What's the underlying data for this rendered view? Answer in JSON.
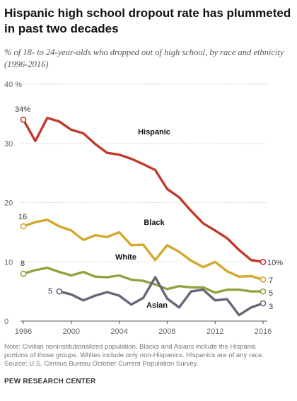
{
  "header": {
    "title": "Hispanic high school dropout rate has plummeted in past two decades",
    "subtitle": "% of 18- to 24-year-olds who dropped out of high school, by race and ethnicity (1996-2016)"
  },
  "footer": {
    "note_line1": "Note: Civilian noninstitutionalized population. Blacks and Asians include the Hispanic",
    "note_line2": "portions of those groups. Whites include only non-Hispanics. Hispanics are of any race.",
    "note_line3": "Source: U.S. Census Bureau October Current Population Survey.",
    "source": "PEW RESEARCH CENTER"
  },
  "chart_data": {
    "type": "line",
    "xlim": [
      1996,
      2016
    ],
    "ylim": [
      0,
      40
    ],
    "x_ticks": [
      "1996",
      "2000",
      "2004",
      "2008",
      "2012",
      "2016"
    ],
    "x_tick_values": [
      1996,
      2000,
      2004,
      2008,
      2012,
      2016
    ],
    "y_ticks": [
      "40 %",
      "30",
      "20",
      "10",
      "0"
    ],
    "y_tick_values": [
      40,
      30,
      20,
      10,
      0
    ],
    "grid": "horizontal",
    "series": [
      {
        "name": "Hispanic",
        "color": "#c0392b",
        "x": [
          1996,
          1997,
          1998,
          1999,
          2000,
          2001,
          2002,
          2003,
          2004,
          2005,
          2006,
          2007,
          2008,
          2009,
          2010,
          2011,
          2012,
          2013,
          2014,
          2015,
          2016
        ],
        "values": [
          34,
          30.4,
          34.3,
          33.7,
          32.3,
          31.7,
          29.9,
          28.4,
          28.1,
          27.4,
          26.5,
          25.5,
          22.3,
          20.9,
          18.6,
          16.5,
          15.3,
          14.0,
          12.0,
          10.3,
          10.0
        ],
        "start_label": "34%",
        "end_label": "10%"
      },
      {
        "name": "Black",
        "color": "#d4a82a",
        "x": [
          1996,
          1997,
          1998,
          1999,
          2000,
          2001,
          2002,
          2003,
          2004,
          2005,
          2006,
          2007,
          2008,
          2009,
          2010,
          2011,
          2012,
          2013,
          2014,
          2015,
          2016
        ],
        "values": [
          16,
          16.7,
          17.1,
          16.0,
          15.3,
          13.7,
          14.5,
          14.2,
          15.0,
          12.8,
          12.9,
          10.3,
          12.8,
          11.7,
          10.2,
          9.1,
          10.0,
          8.4,
          7.5,
          7.6,
          7.0
        ],
        "start_label": "16",
        "end_label": "7"
      },
      {
        "name": "White",
        "color": "#8fa33f",
        "x": [
          1996,
          1997,
          1998,
          1999,
          2000,
          2001,
          2002,
          2003,
          2004,
          2005,
          2006,
          2007,
          2008,
          2009,
          2010,
          2011,
          2012,
          2013,
          2014,
          2015,
          2016
        ],
        "values": [
          8,
          8.6,
          9.0,
          8.3,
          7.7,
          8.3,
          7.5,
          7.4,
          7.7,
          7.0,
          6.8,
          6.2,
          5.4,
          5.9,
          5.7,
          5.7,
          4.8,
          5.3,
          5.3,
          5.0,
          5.0
        ],
        "start_label": "8",
        "end_label": "5"
      },
      {
        "name": "Asian",
        "color": "#6b6478",
        "x": [
          1999,
          2000,
          2001,
          2002,
          2003,
          2004,
          2005,
          2006,
          2007,
          2008,
          2009,
          2010,
          2011,
          2012,
          2013,
          2014,
          2015,
          2016
        ],
        "values": [
          5,
          4.5,
          3.5,
          4.3,
          4.9,
          4.3,
          2.8,
          3.9,
          7.4,
          3.8,
          2.3,
          5.0,
          5.3,
          3.5,
          3.7,
          1.0,
          2.3,
          3.0
        ],
        "start_label": "5",
        "end_label": "3"
      }
    ]
  }
}
